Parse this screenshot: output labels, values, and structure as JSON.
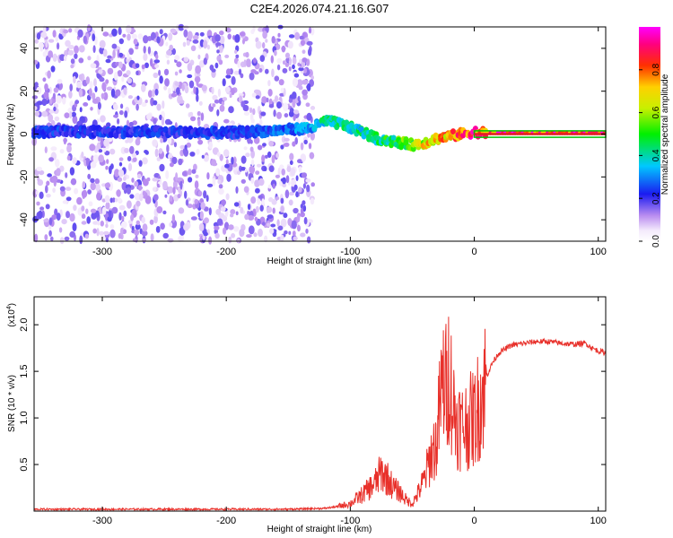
{
  "title": "C2E4.2026.074.21.16.G07",
  "chart_data": [
    {
      "type": "heatmap",
      "title": "C2E4.2026.074.21.16.G07",
      "xlabel": "Height of straight line (km)",
      "ylabel": "Frequency (Hz)",
      "xlim": [
        -355,
        106
      ],
      "ylim": [
        -50,
        50
      ],
      "xticks": [
        -300,
        -200,
        -100,
        0,
        100
      ],
      "yticks": [
        -40,
        -20,
        0,
        20,
        40
      ],
      "noise_band": {
        "x": [
          -355,
          -130
        ],
        "y": [
          -50,
          50
        ]
      },
      "ridge": {
        "x": [
          -355,
          -300,
          -250,
          -200,
          -150,
          -130,
          -120,
          -110,
          -100,
          -90,
          -80,
          -70,
          -60,
          -50,
          -40,
          -30,
          -20,
          -10,
          0,
          10,
          50,
          106
        ],
        "freq": [
          1,
          1,
          1,
          0.5,
          2,
          3,
          6,
          5,
          3,
          1,
          -2,
          -3,
          -4,
          -5,
          -4,
          -2,
          -1,
          0,
          1,
          0.5,
          0.5,
          0.5
        ],
        "amplitude": [
          0.25,
          0.25,
          0.25,
          0.25,
          0.3,
          0.35,
          0.45,
          0.45,
          0.45,
          0.45,
          0.5,
          0.5,
          0.55,
          0.6,
          0.7,
          0.75,
          0.8,
          0.85,
          0.9,
          0.95,
          0.95,
          0.95
        ]
      },
      "colorbar": {
        "label": "Normalized spectral amplitude",
        "ticks": [
          "0.0",
          "0.2",
          "0.4",
          "0.6",
          "0.8"
        ],
        "range": [
          0,
          1
        ]
      }
    },
    {
      "type": "line",
      "xlabel": "Height of straight line (km)",
      "ylabel": "SNR (10 * v/v)",
      "scale_label": "(x10",
      "scale_exp": "4",
      "xlim": [
        -355,
        106
      ],
      "ylim": [
        0,
        2.3
      ],
      "xticks": [
        -300,
        -200,
        -100,
        0,
        100
      ],
      "yticks": [
        "0.5",
        "1.0",
        "1.5",
        "2.0"
      ],
      "series": [
        {
          "name": "SNR",
          "color": "#e8302a",
          "x": [
            -355,
            -300,
            -250,
            -200,
            -150,
            -120,
            -110,
            -100,
            -90,
            -80,
            -75,
            -70,
            -65,
            -60,
            -55,
            -50,
            -45,
            -40,
            -35,
            -30,
            -28,
            -25,
            -22,
            -20,
            -18,
            -15,
            -10,
            -5,
            0,
            5,
            10,
            15,
            20,
            30,
            40,
            50,
            60,
            70,
            80,
            90,
            95,
            100,
            106
          ],
          "y": [
            0.02,
            0.02,
            0.02,
            0.02,
            0.02,
            0.03,
            0.05,
            0.08,
            0.18,
            0.3,
            0.42,
            0.35,
            0.25,
            0.2,
            0.12,
            0.08,
            0.2,
            0.35,
            0.6,
            0.75,
            1.1,
            1.4,
            1.3,
            1.6,
            1.2,
            1.0,
            0.9,
            0.95,
            1.0,
            1.2,
            1.45,
            1.6,
            1.7,
            1.78,
            1.8,
            1.82,
            1.82,
            1.8,
            1.79,
            1.8,
            1.75,
            1.72,
            1.7
          ]
        }
      ]
    }
  ]
}
